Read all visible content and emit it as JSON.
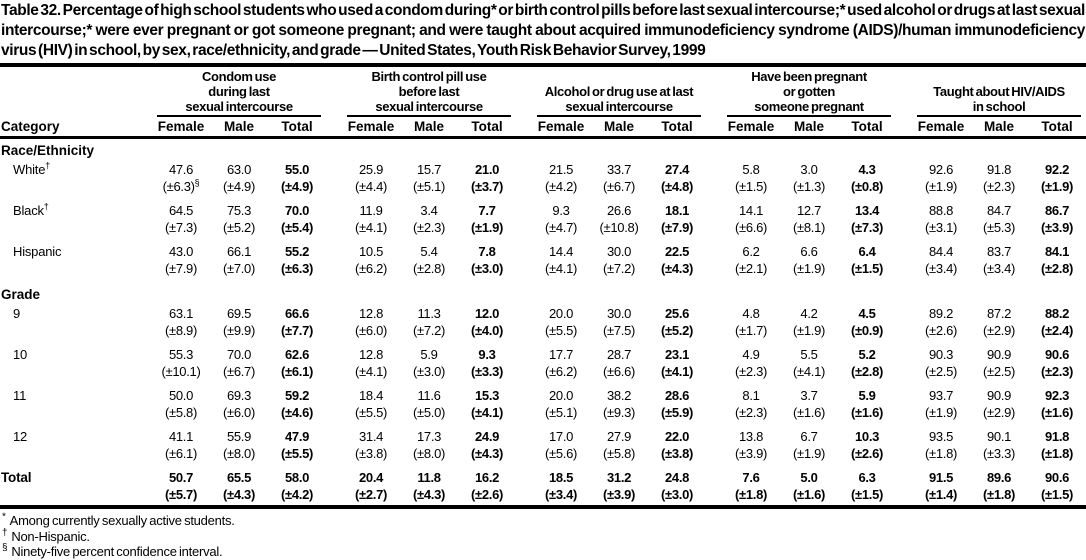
{
  "title": "Table 32. Percentage of high school students who used a condom during* or birth control pills before last sexual intercourse;* used alcohol or drugs at last sexual intercourse;* were ever pregnant or got someone pregnant; and were taught about acquired immunodeficiency syndrome (AIDS)/human immunodeficiency virus (HIV) in school, by sex, race/ethnicity, and grade — United States, Youth Risk Behavior Survey, 1999",
  "header": {
    "category_label": "Category",
    "sub_columns": [
      "Female",
      "Male",
      "Total"
    ],
    "groups": [
      {
        "lines": [
          "Condom use",
          "during last",
          "sexual intercourse"
        ]
      },
      {
        "lines": [
          "Birth control pill use",
          "before last",
          "sexual intercourse"
        ]
      },
      {
        "lines": [
          "Alcohol or drug use at last",
          "sexual intercourse"
        ]
      },
      {
        "lines": [
          "Have been pregnant",
          "or gotten",
          "someone pregnant"
        ]
      },
      {
        "lines": [
          "Taught about HIV/AIDS",
          "in school"
        ]
      }
    ]
  },
  "body": {
    "sections": [
      {
        "label": "Race/Ethnicity",
        "rows": [
          {
            "category": "White",
            "category_sup": "†",
            "values": [
              "47.6",
              "63.0",
              "55.0",
              "25.9",
              "15.7",
              "21.0",
              "21.5",
              "33.7",
              "27.4",
              "5.8",
              "3.0",
              "4.3",
              "92.6",
              "91.8",
              "92.2"
            ],
            "ci": [
              "(±6.3)",
              "(±4.9)",
              "(±4.9)",
              "(±4.4)",
              "(±5.1)",
              "(±3.7)",
              "(±4.2)",
              "(±6.7)",
              "(±4.8)",
              "(±1.5)",
              "(±1.3)",
              "(±0.8)",
              "(±1.9)",
              "(±2.3)",
              "(±1.9)"
            ],
            "ci_sup": {
              "0": "§"
            }
          },
          {
            "category": "Black",
            "category_sup": "†",
            "values": [
              "64.5",
              "75.3",
              "70.0",
              "11.9",
              "3.4",
              "7.7",
              "9.3",
              "26.6",
              "18.1",
              "14.1",
              "12.7",
              "13.4",
              "88.8",
              "84.7",
              "86.7"
            ],
            "ci": [
              "(±7.3)",
              "(±5.2)",
              "(±5.4)",
              "(±4.1)",
              "(±2.3)",
              "(±1.9)",
              "(±4.7)",
              "(±10.8)",
              "(±7.9)",
              "(±6.6)",
              "(±8.1)",
              "(±7.3)",
              "(±3.1)",
              "(±5.3)",
              "(±3.9)"
            ]
          },
          {
            "category": "Hispanic",
            "values": [
              "43.0",
              "66.1",
              "55.2",
              "10.5",
              "5.4",
              "7.8",
              "14.4",
              "30.0",
              "22.5",
              "6.2",
              "6.6",
              "6.4",
              "84.4",
              "83.7",
              "84.1"
            ],
            "ci": [
              "(±7.9)",
              "(±7.0)",
              "(±6.3)",
              "(±6.2)",
              "(±2.8)",
              "(±3.0)",
              "(±4.1)",
              "(±7.2)",
              "(±4.3)",
              "(±2.1)",
              "(±1.9)",
              "(±1.5)",
              "(±3.4)",
              "(±3.4)",
              "(±2.8)"
            ]
          }
        ]
      },
      {
        "label": "Grade",
        "rows": [
          {
            "category": "9",
            "values": [
              "63.1",
              "69.5",
              "66.6",
              "12.8",
              "11.3",
              "12.0",
              "20.0",
              "30.0",
              "25.6",
              "4.8",
              "4.2",
              "4.5",
              "89.2",
              "87.2",
              "88.2"
            ],
            "ci": [
              "(±8.9)",
              "(±9.9)",
              "(±7.7)",
              "(±6.0)",
              "(±7.2)",
              "(±4.0)",
              "(±5.5)",
              "(±7.5)",
              "(±5.2)",
              "(±1.7)",
              "(±1.9)",
              "(±0.9)",
              "(±2.6)",
              "(±2.9)",
              "(±2.4)"
            ]
          },
          {
            "category": "10",
            "values": [
              "55.3",
              "70.0",
              "62.6",
              "12.8",
              "5.9",
              "9.3",
              "17.7",
              "28.7",
              "23.1",
              "4.9",
              "5.5",
              "5.2",
              "90.3",
              "90.9",
              "90.6"
            ],
            "ci": [
              "(±10.1)",
              "(±6.7)",
              "(±6.1)",
              "(±4.1)",
              "(±3.0)",
              "(±3.3)",
              "(±6.2)",
              "(±6.6)",
              "(±4.1)",
              "(±2.3)",
              "(±4.1)",
              "(±2.8)",
              "(±2.5)",
              "(±2.5)",
              "(±2.3)"
            ]
          },
          {
            "category": "11",
            "values": [
              "50.0",
              "69.3",
              "59.2",
              "18.4",
              "11.6",
              "15.3",
              "20.0",
              "38.2",
              "28.6",
              "8.1",
              "3.7",
              "5.9",
              "93.7",
              "90.9",
              "92.3"
            ],
            "ci": [
              "(±5.8)",
              "(±6.0)",
              "(±4.6)",
              "(±5.5)",
              "(±5.0)",
              "(±4.1)",
              "(±5.1)",
              "(±9.3)",
              "(±5.9)",
              "(±2.3)",
              "(±1.6)",
              "(±1.6)",
              "(±1.9)",
              "(±2.9)",
              "(±1.6)"
            ]
          },
          {
            "category": "12",
            "values": [
              "41.1",
              "55.9",
              "47.9",
              "31.4",
              "17.3",
              "24.9",
              "17.0",
              "27.9",
              "22.0",
              "13.8",
              "6.7",
              "10.3",
              "93.5",
              "90.1",
              "91.8"
            ],
            "ci": [
              "(±6.1)",
              "(±8.0)",
              "(±5.5)",
              "(±3.8)",
              "(±8.0)",
              "(±4.3)",
              "(±5.6)",
              "(±5.8)",
              "(±3.8)",
              "(±3.9)",
              "(±1.9)",
              "(±2.6)",
              "(±1.8)",
              "(±3.3)",
              "(±1.8)"
            ]
          }
        ]
      }
    ],
    "total": {
      "category": "Total",
      "values": [
        "50.7",
        "65.5",
        "58.0",
        "20.4",
        "11.8",
        "16.2",
        "18.5",
        "31.2",
        "24.8",
        "7.6",
        "5.0",
        "6.3",
        "91.5",
        "89.6",
        "90.6"
      ],
      "ci": [
        "(±5.7)",
        "(±4.3)",
        "(±4.2)",
        "(±2.7)",
        "(±4.3)",
        "(±2.6)",
        "(±3.4)",
        "(±3.9)",
        "(±3.0)",
        "(±1.8)",
        "(±1.6)",
        "(±1.5)",
        "(±1.4)",
        "(±1.8)",
        "(±1.5)"
      ]
    }
  },
  "footnotes": [
    {
      "mark": "*",
      "text": "Among currently sexually active students."
    },
    {
      "mark": "†",
      "text": "Non-Hispanic."
    },
    {
      "mark": "§",
      "text": "Ninety-five percent confidence interval."
    }
  ]
}
